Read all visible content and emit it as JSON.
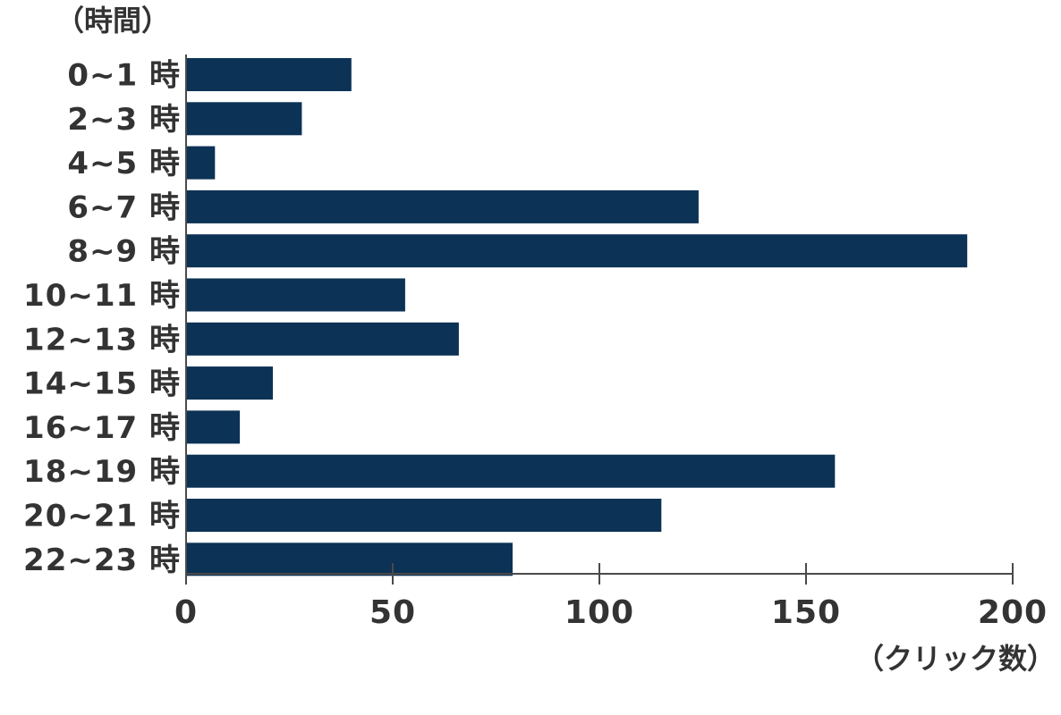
{
  "chart_data": {
    "type": "bar",
    "orientation": "horizontal",
    "ylabel": "（時間）",
    "xlabel": "（クリック数）",
    "categories": [
      "0~1 時",
      "2~3 時",
      "4~5 時",
      "6~7 時",
      "8~9 時",
      "10~11 時",
      "12~13 時",
      "14~15 時",
      "16~17 時",
      "18~19 時",
      "20~21 時",
      "22~23 時"
    ],
    "values": [
      40,
      28,
      7,
      124,
      189,
      53,
      66,
      21,
      13,
      157,
      115,
      79
    ],
    "xlim": [
      0,
      200
    ],
    "xticks": [
      "0",
      "50",
      "100",
      "150",
      "200"
    ],
    "bar_color": "#0c3255",
    "axis_color": "#4a4a4a",
    "grid": false,
    "legend": "none"
  }
}
